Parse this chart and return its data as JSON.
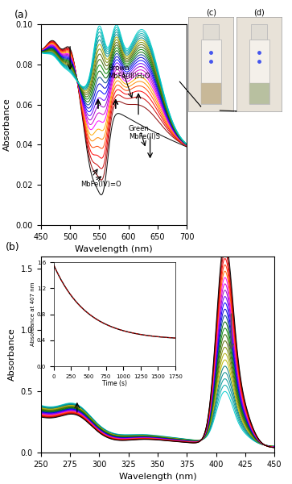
{
  "panel_a": {
    "xlabel": "Wavelength (nm)",
    "ylabel": "Absorbance",
    "xlim": [
      450,
      700
    ],
    "ylim": [
      0.0,
      0.1
    ],
    "yticks": [
      0.0,
      0.02,
      0.04,
      0.06,
      0.08,
      0.1
    ],
    "xticks": [
      450,
      500,
      550,
      600,
      650,
      700
    ],
    "n_spectra": 25
  },
  "panel_b": {
    "xlabel": "Wavelength (nm)",
    "ylabel": "Absorbance",
    "xlim": [
      250,
      450
    ],
    "ylim": [
      0.0,
      1.6
    ],
    "yticks": [
      0.0,
      0.5,
      1.0,
      1.5
    ],
    "xticks": [
      250,
      275,
      300,
      325,
      350,
      375,
      400,
      425,
      450
    ],
    "n_spectra": 25
  },
  "inset": {
    "xlabel": "Time (s)",
    "ylabel": "Absorbance at 407 nm",
    "xlim": [
      0,
      1750
    ],
    "ylim": [
      0.0,
      1.6
    ],
    "xticks": [
      0,
      250,
      500,
      750,
      1000,
      1250,
      1500,
      1750
    ],
    "yticks": [
      0.0,
      0.4,
      0.8,
      1.2,
      1.6
    ]
  },
  "colors_a": [
    "#000000",
    "#880000",
    "#cc0000",
    "#ff0000",
    "#ff4400",
    "#ff8800",
    "#ffaa00",
    "#ff00ff",
    "#cc00cc",
    "#9900cc",
    "#6600ff",
    "#0000ff",
    "#0000cc",
    "#004488",
    "#006600",
    "#008800",
    "#336600",
    "#556600",
    "#778800",
    "#aaaa00",
    "#008888",
    "#009999",
    "#00aaaa",
    "#00bbbb",
    "#00cccc"
  ],
  "colors_b": [
    "#000000",
    "#880000",
    "#cc0000",
    "#ff0000",
    "#ff3300",
    "#ff6600",
    "#ff00ff",
    "#cc00cc",
    "#9900cc",
    "#6600ff",
    "#0000ff",
    "#0000cc",
    "#004488",
    "#006600",
    "#008800",
    "#336600",
    "#556600",
    "#778800",
    "#aaaa00",
    "#bbbb00",
    "#007777",
    "#008888",
    "#009999",
    "#00aaaa",
    "#00cccc"
  ]
}
